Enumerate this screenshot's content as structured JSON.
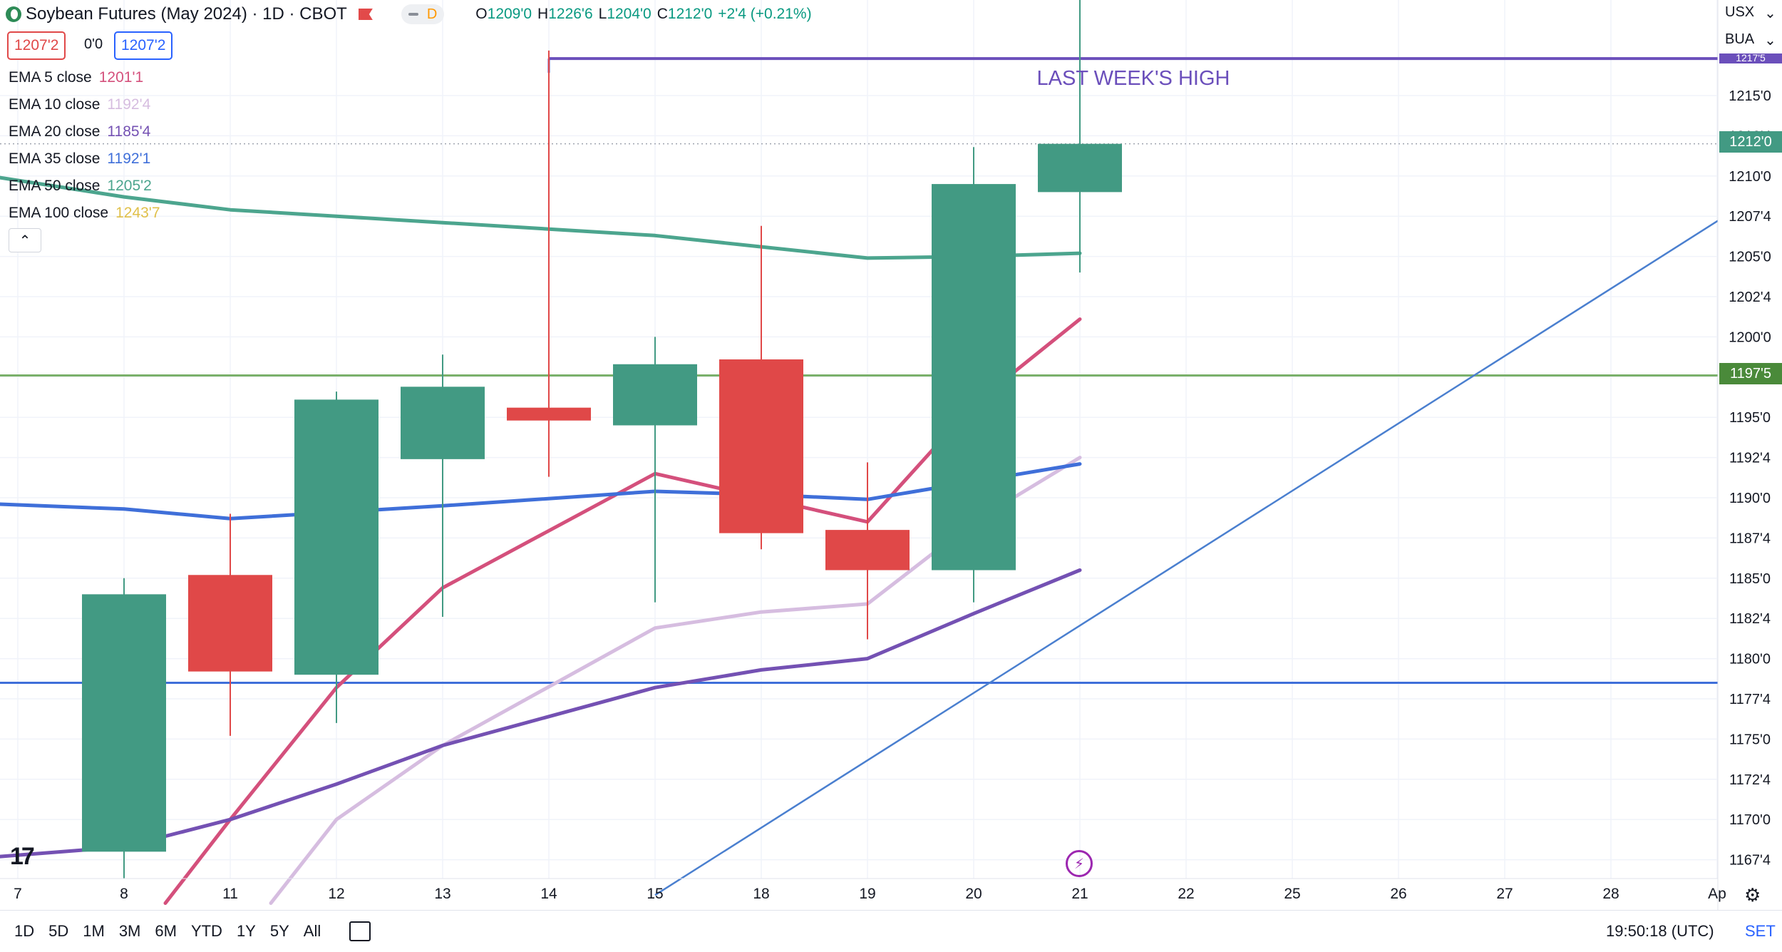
{
  "header": {
    "title": "Soybean Futures (May 2024) · 1D · CBOT",
    "mode_badge": "D",
    "ohlc": {
      "o_label": "O",
      "o": "1209'0",
      "h_label": "H",
      "h": "1226'6",
      "l_label": "L",
      "l": "1204'0",
      "c_label": "C",
      "c": "1212'0",
      "change": "+2'4 (+0.21%)"
    },
    "sell_price": "1207'2",
    "spread": "0'0",
    "buy_price": "1207'2"
  },
  "legend": [
    {
      "label": "EMA 5 close",
      "value": "1201'1",
      "color": "#d4507c"
    },
    {
      "label": "EMA 10 close",
      "value": "1192'4",
      "color": "#d6bde0"
    },
    {
      "label": "EMA 20 close",
      "value": "1185'4",
      "color": "#7451b3"
    },
    {
      "label": "EMA 35 close",
      "value": "1192'1",
      "color": "#3f6fd9"
    },
    {
      "label": "EMA 50 close",
      "value": "1205'2",
      "color": "#4ca58e"
    },
    {
      "label": "EMA 100 close",
      "value": "1243'7",
      "color": "#e0c04a"
    }
  ],
  "right_axis": {
    "unit": "USX",
    "sub": "BUA"
  },
  "tags": {
    "last_price": "1212'0",
    "level_price": "1197'5",
    "top_hidden": "1217'5"
  },
  "annotation": "LAST WEEK'S HIGH",
  "timeframes": [
    "1D",
    "5D",
    "1M",
    "3M",
    "6M",
    "YTD",
    "1Y",
    "5Y",
    "All"
  ],
  "clock": "19:50:18 (UTC)",
  "set_label": "SET",
  "tv_logo": "17",
  "chart_data": {
    "type": "candlestick",
    "unit": "cents (fraction in eighths)",
    "x_tick_labels": [
      "7",
      "8",
      "11",
      "12",
      "13",
      "14",
      "15",
      "18",
      "19",
      "20",
      "21",
      "22",
      "25",
      "26",
      "27",
      "28",
      "Ap"
    ],
    "y_tick_labels": [
      "1215'0",
      "1212'4",
      "1210'0",
      "1207'4",
      "1205'0",
      "1202'4",
      "1200'0",
      "1197'4",
      "1195'0",
      "1192'4",
      "1190'0",
      "1187'4",
      "1185'0",
      "1182'4",
      "1180'0",
      "1177'4",
      "1175'0",
      "1172'4",
      "1170'0",
      "1167'4"
    ],
    "ylim": [
      1165,
      1218
    ],
    "candles": [
      {
        "date": "8",
        "open": 1168,
        "high": 1185,
        "low": 1160,
        "close": 1184.0
      },
      {
        "date": "11",
        "open": 1185.2,
        "high": 1189,
        "low": 1175.2,
        "close": 1179.2
      },
      {
        "date": "12",
        "open": 1179,
        "high": 1196.6,
        "low": 1176.0,
        "close": 1196.1
      },
      {
        "date": "13",
        "open": 1192.4,
        "high": 1198.9,
        "low": 1182.6,
        "close": 1196.9
      },
      {
        "date": "14",
        "open": 1195.6,
        "high": 1217.8,
        "low": 1191.3,
        "close": 1194.8
      },
      {
        "date": "15",
        "open": 1194.5,
        "high": 1200.0,
        "low": 1183.5,
        "close": 1198.3
      },
      {
        "date": "18",
        "open": 1198.6,
        "high": 1206.9,
        "low": 1186.8,
        "close": 1187.8
      },
      {
        "date": "19",
        "open": 1188.0,
        "high": 1192.2,
        "low": 1181.2,
        "close": 1185.5
      },
      {
        "date": "20",
        "open": 1185.5,
        "high": 1211.8,
        "low": 1183.5,
        "close": 1209.5
      },
      {
        "date": "21",
        "open": 1209.0,
        "high": 1226.75,
        "low": 1204.0,
        "close": 1212.0
      }
    ],
    "series": [
      {
        "name": "EMA 5 close",
        "x": [
          "8",
          "11",
          "12",
          "13",
          "15",
          "18",
          "19",
          "20",
          "21"
        ],
        "values": [
          1164.8,
          1170.0,
          1178.2,
          1184.4,
          1191.5,
          1190.0,
          1188.5,
          1195.8,
          1201.1
        ]
      },
      {
        "name": "EMA 10 close",
        "x": [
          "11",
          "12",
          "13",
          "15",
          "18",
          "19",
          "20",
          "21"
        ],
        "values": [
          1164.8,
          1170.0,
          1174.6,
          1181.9,
          1182.9,
          1183.4,
          1188.5,
          1192.5
        ]
      },
      {
        "name": "EMA 20 close",
        "x": [
          "7",
          "8",
          "11",
          "12",
          "13",
          "15",
          "18",
          "19",
          "20",
          "21"
        ],
        "values": [
          1167.7,
          1168.3,
          1170.0,
          1172.2,
          1174.6,
          1178.2,
          1179.3,
          1180.0,
          1182.8,
          1185.5
        ]
      },
      {
        "name": "EMA 35 close",
        "x": [
          "7",
          "8",
          "11",
          "12",
          "13",
          "15",
          "18",
          "19",
          "20",
          "21"
        ],
        "values": [
          1189.6,
          1189.3,
          1188.7,
          1189.1,
          1189.5,
          1190.4,
          1190.2,
          1189.9,
          1191.0,
          1192.1
        ]
      },
      {
        "name": "EMA 50 close",
        "x": [
          "7",
          "8",
          "11",
          "12",
          "13",
          "14",
          "15",
          "18",
          "19",
          "20",
          "21"
        ],
        "values": [
          1209.9,
          1208.7,
          1207.9,
          1207.5,
          1207.1,
          1206.7,
          1206.3,
          1205.6,
          1204.9,
          1205.0,
          1205.2
        ]
      }
    ],
    "horizontal_lines": [
      {
        "value": 1217.3,
        "color": "#6b4fbb",
        "from": "14"
      },
      {
        "value": 1197.6,
        "color": "#7ab06a"
      },
      {
        "value": 1178.5,
        "color": "#3f6fd9"
      },
      {
        "value": 1212.0,
        "color": "#9ea3ae",
        "style": "dotted"
      }
    ],
    "trend_line": {
      "from": {
        "x": "15",
        "value": 1165.3
      },
      "to": {
        "x": "28",
        "value": 1203.0
      },
      "color": "#4a7fcf"
    },
    "colors": {
      "up": "#429a83",
      "down": "#e04848"
    }
  }
}
